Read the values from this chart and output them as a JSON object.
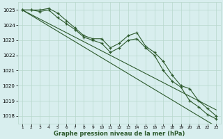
{
  "x": [
    1,
    2,
    3,
    4,
    5,
    6,
    7,
    8,
    9,
    10,
    11,
    12,
    13,
    14,
    15,
    16,
    17,
    18,
    19,
    20,
    21,
    22,
    23
  ],
  "line_wavy1": [
    1025.0,
    1025.0,
    1025.0,
    1025.1,
    1024.8,
    1024.3,
    1023.8,
    1023.3,
    1023.1,
    1023.1,
    1022.5,
    1022.8,
    1023.3,
    1023.5,
    1022.6,
    1022.2,
    1021.6,
    1020.7,
    1020.0,
    1019.8,
    1019.0,
    1018.5,
    1018.0
  ],
  "line_wavy2": [
    1025.0,
    1025.0,
    1024.9,
    1025.0,
    1024.5,
    1024.1,
    1023.7,
    1023.2,
    1023.0,
    1022.8,
    1022.2,
    1022.5,
    1023.0,
    1023.1,
    1022.5,
    1022.0,
    1021.0,
    1020.3,
    1019.9,
    1019.0,
    1018.6,
    1018.1,
    1017.8
  ],
  "line_reg1": [
    1025.0,
    1024.7,
    1024.4,
    1024.1,
    1023.8,
    1023.5,
    1023.2,
    1022.9,
    1022.6,
    1022.3,
    1022.0,
    1021.7,
    1021.4,
    1021.1,
    1020.8,
    1020.5,
    1020.2,
    1019.9,
    1019.6,
    1019.3,
    1019.0,
    1018.7,
    1018.4
  ],
  "line_reg2": [
    1025.0,
    1024.65,
    1024.3,
    1023.95,
    1023.6,
    1023.25,
    1022.9,
    1022.55,
    1022.2,
    1021.85,
    1021.5,
    1021.15,
    1020.8,
    1020.45,
    1020.1,
    1019.75,
    1019.4,
    1019.05,
    1018.7,
    1018.35,
    1018.0,
    1017.65,
    1017.3
  ],
  "bg_color": "#d8eeee",
  "grid_color": "#b8d8cc",
  "line_color": "#2d5a2d",
  "xlabel": "Graphe pression niveau de la mer (hPa)",
  "ylim": [
    1017.5,
    1025.5
  ],
  "xlim_min": 0.5,
  "xlim_max": 23.5
}
